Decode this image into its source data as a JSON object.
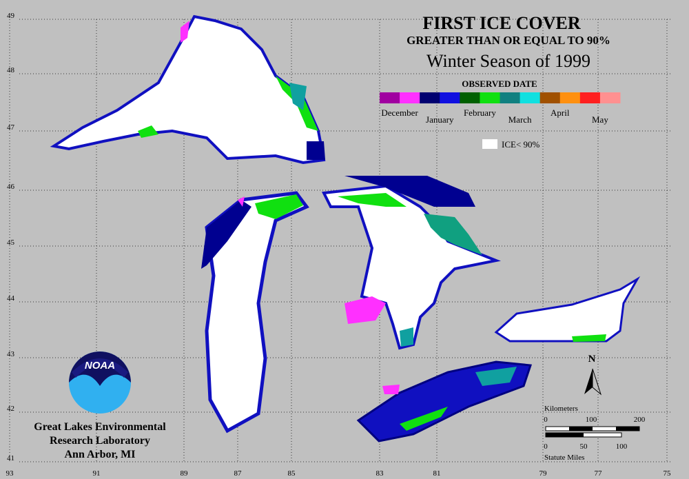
{
  "title": "FIRST ICE COVER",
  "subtitle": "GREATER THAN OR EQUAL TO 90%",
  "season": "Winter Season of 1999",
  "legend": {
    "title": "OBSERVED DATE",
    "months": [
      "December",
      "January",
      "February",
      "March",
      "April",
      "May"
    ],
    "colors": [
      "#a000a0",
      "#ff30ff",
      "#000070",
      "#1010e0",
      "#006000",
      "#10e010",
      "#108080",
      "#10e0e0",
      "#a05000",
      "#ff9010",
      "#ff2020",
      "#ff9090"
    ],
    "ice_label": "ICE< 90%"
  },
  "latitudes": [
    "49",
    "48",
    "47",
    "46",
    "45",
    "44",
    "43",
    "42",
    "41"
  ],
  "longitudes": [
    "93",
    "91",
    "89",
    "87",
    "85",
    "83",
    "81",
    "79",
    "77",
    "75"
  ],
  "north": "N",
  "scale": {
    "km_title": "Kilometers",
    "km_ticks": [
      "0",
      "100",
      "200"
    ],
    "mile_title": "Statute Miles",
    "mile_ticks": [
      "0",
      "50",
      "100"
    ]
  },
  "logo": "NOAA",
  "credit": [
    "Great Lakes Environmental",
    "Research Laboratory",
    "Ann Arbor, MI"
  ]
}
